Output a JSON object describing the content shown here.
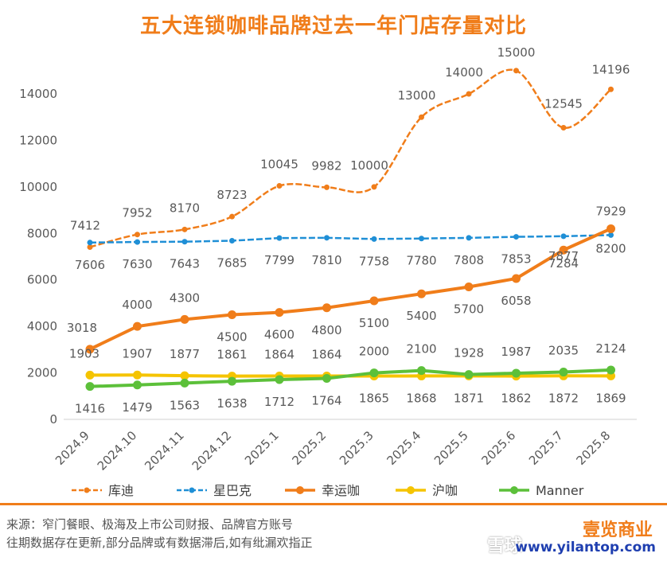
{
  "title": "五大连锁咖啡品牌过去一年门店存量对比",
  "footer": {
    "source_line1": "来源：窄门餐眼、极海及上市公司财报、品牌官方账号",
    "source_line2": "往期数据存在更新,部分品牌或有数据滞后,如有纰漏欢指正",
    "watermark_brand": "壹览商业",
    "watermark_url": "www.yilantop.com",
    "xueqiu_mark": "雪球"
  },
  "colors": {
    "title": "#f07d1a",
    "kudi": "#f07d1a",
    "starbucks": "#1f8fd6",
    "luckin": "#f07d1a",
    "huka": "#f5c400",
    "manner": "#5cc03a"
  },
  "chart_data": {
    "type": "line",
    "title": "五大连锁咖啡品牌过去一年门店存量对比",
    "categories": [
      "2024.9",
      "2024.10",
      "2024.11",
      "2024.12",
      "2025.1",
      "2025.2",
      "2025.3",
      "2025.4",
      "2025.5",
      "2025.6",
      "2025.7",
      "2025.8"
    ],
    "ylim": [
      0,
      15000
    ],
    "yticks": [
      0,
      2000,
      4000,
      6000,
      8000,
      10000,
      12000,
      14000
    ],
    "grid": false,
    "legend_position": "bottom",
    "series": [
      {
        "name": "库迪",
        "style": "dashed-smooth",
        "color": "#f07d1a",
        "values": [
          7412,
          7952,
          8170,
          8723,
          10045,
          9982,
          10000,
          13000,
          14000,
          15000,
          12545,
          14196
        ]
      },
      {
        "name": "星巴克",
        "style": "dashed",
        "color": "#1f8fd6",
        "values": [
          7606,
          7630,
          7643,
          7685,
          7799,
          7810,
          7758,
          7780,
          7808,
          7853,
          7877,
          7929
        ]
      },
      {
        "name": "幸运咖",
        "style": "solid",
        "color": "#f07d1a",
        "values": [
          3018,
          4000,
          4300,
          4500,
          4600,
          4800,
          5100,
          5400,
          5700,
          6058,
          7284,
          8200
        ]
      },
      {
        "name": "沪咖",
        "style": "solid",
        "color": "#f5c400",
        "values": [
          1903,
          1907,
          1877,
          1861,
          1864,
          1864,
          1865,
          1868,
          1871,
          1862,
          1872,
          1869
        ]
      },
      {
        "name": "Manner",
        "style": "solid",
        "color": "#5cc03a",
        "values": [
          1416,
          1479,
          1563,
          1638,
          1712,
          1764,
          2000,
          2100,
          1928,
          1987,
          2035,
          2124
        ]
      }
    ]
  }
}
